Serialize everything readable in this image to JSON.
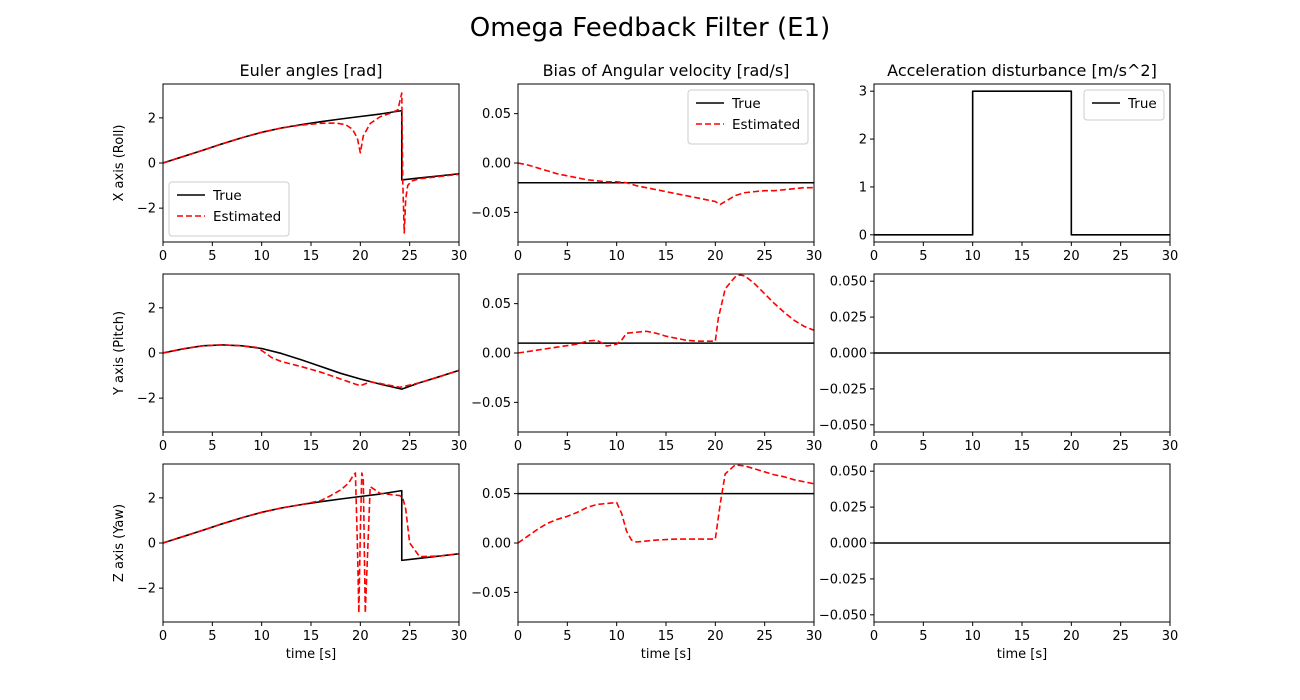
{
  "figure": {
    "title": "Omega Feedback Filter (E1)",
    "xlabel": "time [s]"
  },
  "colors": {
    "true": "#000000",
    "estimated": "#ff0000"
  },
  "chart_data": [
    {
      "type": "line",
      "title": "Euler angles [rad]",
      "ylabel": "X axis (Roll)",
      "xlim": [
        0,
        30
      ],
      "ylim": [
        -3.5,
        3.5
      ],
      "xticks": [
        0,
        5,
        10,
        15,
        20,
        25,
        30
      ],
      "yticks": [
        -2,
        0,
        2
      ],
      "legend": {
        "position": "lower-left",
        "entries": [
          "True",
          "Estimated"
        ]
      },
      "series": [
        {
          "name": "True",
          "style": "solid",
          "x": [
            0,
            2,
            4,
            6,
            8,
            10,
            12,
            14,
            16,
            18,
            20,
            22,
            24.2,
            24.2,
            26,
            28,
            30
          ],
          "y": [
            0,
            0.28,
            0.56,
            0.85,
            1.12,
            1.36,
            1.55,
            1.7,
            1.83,
            1.95,
            2.06,
            2.17,
            2.32,
            -0.75,
            -0.66,
            -0.57,
            -0.48
          ]
        },
        {
          "name": "Estimated",
          "style": "dashed",
          "x": [
            0,
            2,
            4,
            6,
            8,
            10,
            12,
            14,
            16,
            17.5,
            18.5,
            19.2,
            19.7,
            20,
            20.3,
            21,
            22,
            23,
            23.8,
            24.2,
            24.3,
            24.45,
            24.6,
            24.8,
            25.2,
            26,
            28,
            30
          ],
          "y": [
            0,
            0.28,
            0.56,
            0.85,
            1.12,
            1.36,
            1.55,
            1.68,
            1.76,
            1.77,
            1.7,
            1.5,
            1.1,
            0.45,
            1.2,
            1.75,
            2.05,
            2.2,
            2.35,
            3.1,
            -0.8,
            -3.1,
            -1.6,
            -1.0,
            -0.8,
            -0.7,
            -0.6,
            -0.5
          ]
        }
      ]
    },
    {
      "type": "line",
      "title": "Bias of Angular velocity [rad/s]",
      "ylabel": "",
      "xlim": [
        0,
        30
      ],
      "ylim": [
        -0.08,
        0.08
      ],
      "xticks": [
        0,
        5,
        10,
        15,
        20,
        25,
        30
      ],
      "yticks": [
        -0.05,
        0.0,
        0.05
      ],
      "legend": {
        "position": "top-right",
        "entries": [
          "True",
          "Estimated"
        ]
      },
      "series": [
        {
          "name": "True",
          "style": "solid",
          "x": [
            0,
            30
          ],
          "y": [
            -0.02,
            -0.02
          ]
        },
        {
          "name": "Estimated",
          "style": "dashed",
          "x": [
            0,
            1,
            2,
            3,
            4,
            5,
            6,
            7,
            8,
            9,
            10,
            11,
            12,
            13,
            14,
            15,
            16,
            17,
            18,
            19,
            20,
            20.5,
            21,
            22,
            23,
            24,
            25,
            26,
            27,
            28,
            29,
            30
          ],
          "y": [
            0,
            -0.002,
            -0.005,
            -0.008,
            -0.011,
            -0.013,
            -0.015,
            -0.017,
            -0.018,
            -0.019,
            -0.019,
            -0.02,
            -0.023,
            -0.025,
            -0.027,
            -0.029,
            -0.031,
            -0.033,
            -0.035,
            -0.037,
            -0.039,
            -0.042,
            -0.039,
            -0.033,
            -0.03,
            -0.029,
            -0.028,
            -0.028,
            -0.027,
            -0.026,
            -0.025,
            -0.025
          ]
        }
      ]
    },
    {
      "type": "line",
      "title": "Acceleration disturbance [m/s^2]",
      "ylabel": "",
      "xlim": [
        0,
        30
      ],
      "ylim": [
        -0.15,
        3.15
      ],
      "xticks": [
        0,
        5,
        10,
        15,
        20,
        25,
        30
      ],
      "yticks": [
        0,
        1,
        2,
        3
      ],
      "legend": {
        "position": "top-right",
        "entries": [
          "True"
        ]
      },
      "series": [
        {
          "name": "True",
          "style": "solid",
          "x": [
            0,
            10,
            10,
            20,
            20,
            30
          ],
          "y": [
            0,
            0,
            3,
            3,
            0,
            0
          ]
        }
      ]
    },
    {
      "type": "line",
      "title": "",
      "ylabel": "Y axis (Pitch)",
      "xlim": [
        0,
        30
      ],
      "ylim": [
        -3.5,
        3.5
      ],
      "xticks": [
        0,
        5,
        10,
        15,
        20,
        25,
        30
      ],
      "yticks": [
        -2,
        0,
        2
      ],
      "legend": null,
      "series": [
        {
          "name": "True",
          "style": "solid",
          "x": [
            0,
            2,
            4,
            6,
            8,
            10,
            12,
            14,
            16,
            18,
            20,
            22,
            24.2,
            26,
            28,
            30
          ],
          "y": [
            0,
            0.18,
            0.32,
            0.36,
            0.32,
            0.2,
            -0.02,
            -0.3,
            -0.6,
            -0.9,
            -1.15,
            -1.38,
            -1.6,
            -1.32,
            -1.05,
            -0.77
          ]
        },
        {
          "name": "Estimated",
          "style": "dashed",
          "x": [
            0,
            2,
            4,
            6,
            8,
            9.5,
            10.2,
            11,
            12,
            14,
            16,
            18,
            19.5,
            20,
            21,
            22,
            24,
            26,
            28,
            30
          ],
          "y": [
            0,
            0.18,
            0.32,
            0.36,
            0.32,
            0.25,
            0.05,
            -0.2,
            -0.38,
            -0.6,
            -0.85,
            -1.15,
            -1.38,
            -1.45,
            -1.28,
            -1.35,
            -1.52,
            -1.32,
            -1.05,
            -0.77
          ]
        }
      ]
    },
    {
      "type": "line",
      "title": "",
      "ylabel": "",
      "xlim": [
        0,
        30
      ],
      "ylim": [
        -0.08,
        0.08
      ],
      "xticks": [
        0,
        5,
        10,
        15,
        20,
        25,
        30
      ],
      "yticks": [
        -0.05,
        0.0,
        0.05
      ],
      "legend": null,
      "series": [
        {
          "name": "True",
          "style": "solid",
          "x": [
            0,
            30
          ],
          "y": [
            0.01,
            0.01
          ]
        },
        {
          "name": "Estimated",
          "style": "dashed",
          "x": [
            0,
            2,
            4,
            6,
            7,
            8,
            9,
            10,
            10.5,
            11,
            12,
            13,
            14,
            15,
            16,
            17,
            18,
            19,
            20,
            20.3,
            21,
            22,
            22.5,
            23,
            24,
            25,
            26,
            27,
            28,
            29,
            30
          ],
          "y": [
            0,
            0.003,
            0.006,
            0.009,
            0.012,
            0.013,
            0.007,
            0.009,
            0.013,
            0.02,
            0.021,
            0.022,
            0.02,
            0.017,
            0.015,
            0.013,
            0.012,
            0.012,
            0.012,
            0.035,
            0.065,
            0.077,
            0.079,
            0.078,
            0.07,
            0.06,
            0.05,
            0.041,
            0.033,
            0.027,
            0.023
          ]
        }
      ]
    },
    {
      "type": "line",
      "title": "",
      "ylabel": "",
      "xlim": [
        0,
        30
      ],
      "ylim": [
        -0.055,
        0.055
      ],
      "xticks": [
        0,
        5,
        10,
        15,
        20,
        25,
        30
      ],
      "yticks": [
        -0.05,
        -0.025,
        0.0,
        0.025,
        0.05
      ],
      "legend": null,
      "series": [
        {
          "name": "True",
          "style": "solid",
          "x": [
            0,
            30
          ],
          "y": [
            0,
            0
          ]
        }
      ]
    },
    {
      "type": "line",
      "title": "",
      "ylabel": "Z axis (Yaw)",
      "xlim": [
        0,
        30
      ],
      "ylim": [
        -3.5,
        3.5
      ],
      "xticks": [
        0,
        5,
        10,
        15,
        20,
        25,
        30
      ],
      "yticks": [
        -2,
        0,
        2
      ],
      "legend": null,
      "series": [
        {
          "name": "True",
          "style": "solid",
          "x": [
            0,
            2,
            4,
            6,
            8,
            10,
            12,
            14,
            16,
            18,
            20,
            22,
            24.2,
            24.2,
            26,
            28,
            30
          ],
          "y": [
            0,
            0.28,
            0.56,
            0.85,
            1.12,
            1.36,
            1.55,
            1.7,
            1.83,
            1.95,
            2.06,
            2.17,
            2.32,
            -0.77,
            -0.68,
            -0.58,
            -0.48
          ]
        },
        {
          "name": "Estimated",
          "style": "dashed",
          "x": [
            0,
            2,
            4,
            6,
            8,
            10,
            12,
            14,
            16,
            17,
            18,
            18.8,
            19.3,
            19.5,
            19.7,
            19.85,
            20.0,
            20.15,
            20.3,
            20.5,
            21,
            22,
            23,
            24,
            24.3,
            24.6,
            25,
            26,
            28,
            30
          ],
          "y": [
            0,
            0.28,
            0.56,
            0.85,
            1.12,
            1.36,
            1.55,
            1.7,
            1.88,
            2.1,
            2.35,
            2.65,
            3.0,
            3.1,
            0.0,
            -3.1,
            0.5,
            3.1,
            2.8,
            -3.1,
            2.5,
            2.2,
            2.15,
            2.1,
            2.0,
            1.5,
            0.0,
            -0.6,
            -0.58,
            -0.48
          ]
        }
      ]
    },
    {
      "type": "line",
      "title": "",
      "ylabel": "",
      "xlim": [
        0,
        30
      ],
      "ylim": [
        -0.08,
        0.08
      ],
      "xticks": [
        0,
        5,
        10,
        15,
        20,
        25,
        30
      ],
      "yticks": [
        -0.05,
        0.0,
        0.05
      ],
      "legend": null,
      "series": [
        {
          "name": "True",
          "style": "solid",
          "x": [
            0,
            30
          ],
          "y": [
            0.05,
            0.05
          ]
        },
        {
          "name": "Estimated",
          "style": "dashed",
          "x": [
            0,
            1,
            2,
            3,
            4,
            5,
            6,
            7,
            8,
            9,
            10,
            10.5,
            11,
            11.5,
            12,
            13,
            14,
            16,
            18,
            19.5,
            20,
            20.5,
            21,
            22,
            23,
            24,
            25,
            26,
            27,
            28,
            29,
            30
          ],
          "y": [
            0,
            0.007,
            0.014,
            0.02,
            0.024,
            0.027,
            0.031,
            0.036,
            0.039,
            0.04,
            0.041,
            0.03,
            0.012,
            0.003,
            0.001,
            0.002,
            0.003,
            0.004,
            0.004,
            0.004,
            0.004,
            0.04,
            0.07,
            0.079,
            0.078,
            0.075,
            0.072,
            0.069,
            0.067,
            0.064,
            0.062,
            0.06
          ]
        }
      ]
    },
    {
      "type": "line",
      "title": "",
      "ylabel": "",
      "xlim": [
        0,
        30
      ],
      "ylim": [
        -0.055,
        0.055
      ],
      "xticks": [
        0,
        5,
        10,
        15,
        20,
        25,
        30
      ],
      "yticks": [
        -0.05,
        -0.025,
        0.0,
        0.025,
        0.05
      ],
      "legend": null,
      "series": [
        {
          "name": "True",
          "style": "solid",
          "x": [
            0,
            30
          ],
          "y": [
            0,
            0
          ]
        }
      ]
    }
  ]
}
